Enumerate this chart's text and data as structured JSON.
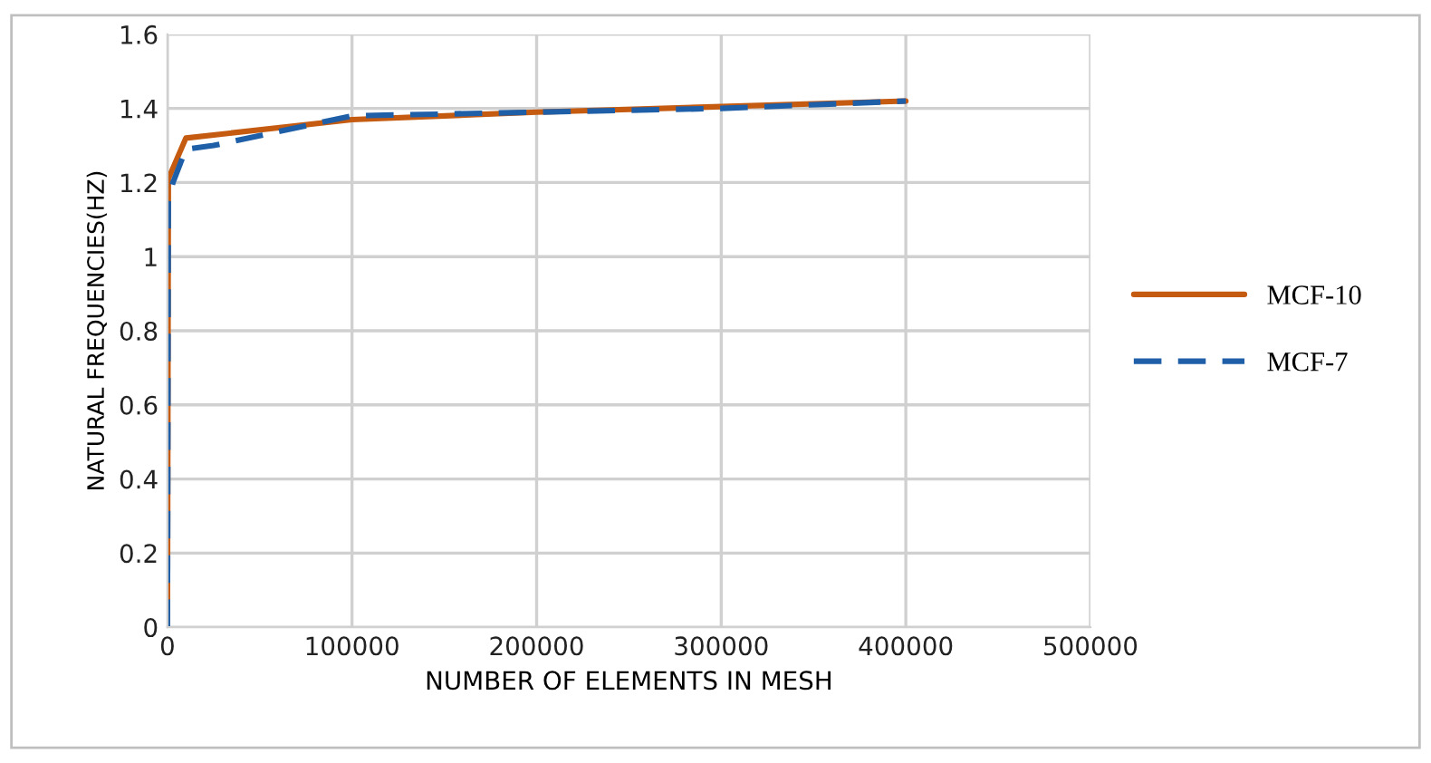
{
  "chart_data": {
    "type": "line",
    "xlabel": "NUMBER OF ELEMENTS IN MESH",
    "ylabel": "NATURAL FREQUENCIES(HZ)",
    "xlim": [
      0,
      500000
    ],
    "xticks": [
      0,
      100000,
      200000,
      300000,
      400000,
      500000
    ],
    "ylim": [
      0,
      1.6
    ],
    "yticks": [
      0,
      0.2,
      0.4,
      0.6,
      0.8,
      1,
      1.2,
      1.4,
      1.6
    ],
    "grid": true,
    "legend": "right",
    "marker": "none",
    "series": [
      {
        "name": "MCF-10",
        "color": "#c55a11",
        "line_style": "solid",
        "x": [
          0,
          500,
          10000,
          100000,
          200000,
          300000,
          400000
        ],
        "values": [
          0,
          1.21,
          1.32,
          1.37,
          1.39,
          1.405,
          1.42
        ]
      },
      {
        "name": "MCF-7",
        "color": "#1f5fa8",
        "line_style": "dashed",
        "x": [
          0,
          500,
          3000,
          10000,
          25000,
          100000,
          200000,
          300000,
          400000
        ],
        "values": [
          0,
          1.15,
          1.2,
          1.29,
          1.3,
          1.38,
          1.39,
          1.4,
          1.42
        ]
      }
    ]
  }
}
